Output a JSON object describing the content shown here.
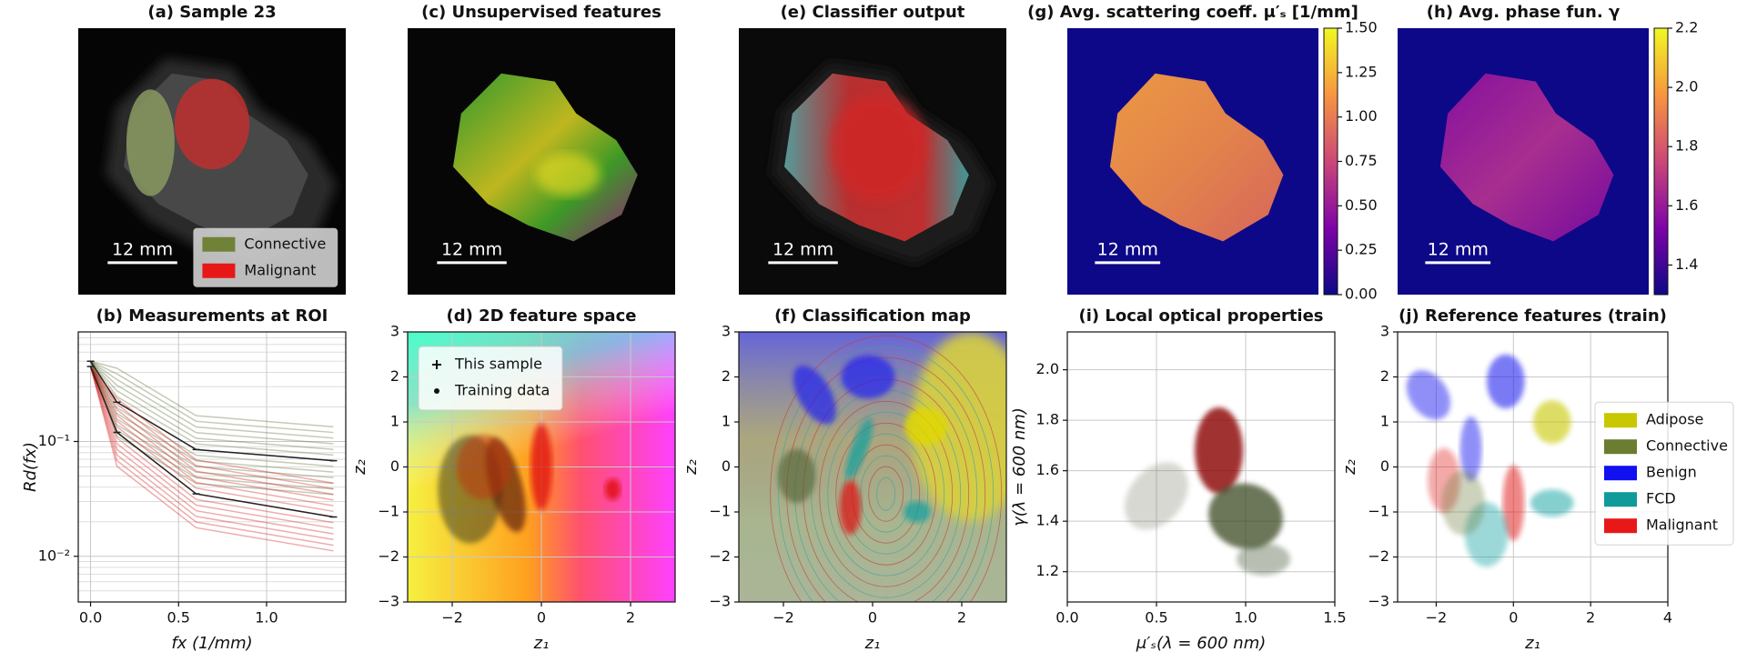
{
  "chart_data": [
    {
      "type": "image",
      "title": "(a) Sample 23",
      "scalebar": "12 mm",
      "legend": {
        "position": "lower right",
        "entries": [
          {
            "name": "Connective",
            "color": "#708238"
          },
          {
            "name": "Malignant",
            "color": "#e81818"
          }
        ]
      }
    },
    {
      "type": "line",
      "title": "(b) Measurements at ROI",
      "xlabel": "fx (1/mm)",
      "ylabel": "Rd(fx)",
      "log_y": true,
      "grid": true,
      "xlim": [
        -0.07,
        1.45
      ],
      "ylim": [
        0.004,
        0.9
      ],
      "xticks": [
        {
          "value": 0,
          "label": "0.0"
        },
        0.5,
        {
          "value": 1,
          "label": "1.0"
        }
      ],
      "yticks": [
        {
          "value": 0.01,
          "label": "10⁻²"
        },
        {
          "value": 0.1,
          "label": "10⁻¹"
        }
      ],
      "x": [
        0,
        0.15,
        0.6,
        1.38
      ],
      "series": [
        {
          "name": "Connective",
          "color": "#556b2f",
          "values": [
            0.5,
            0.22,
            0.085,
            0.068
          ]
        },
        {
          "name": "Malignant",
          "color": "#d01010",
          "values": [
            0.45,
            0.12,
            0.035,
            0.022
          ]
        }
      ]
    },
    {
      "type": "image",
      "title": "(c) Unsupervised features",
      "scalebar": "12 mm"
    },
    {
      "type": "scatter",
      "title": "(d) 2D feature space",
      "xlabel": "z₁",
      "ylabel": "z₂",
      "grid": true,
      "xlim": [
        -3,
        3
      ],
      "ylim": [
        -3,
        3
      ],
      "xticks": [
        {
          "value": -2,
          "label": "−2"
        },
        0,
        2
      ],
      "yticks": [
        {
          "value": -3,
          "label": "−3"
        },
        {
          "value": -2,
          "label": "−2"
        },
        {
          "value": -1,
          "label": "−1"
        },
        0,
        1,
        2,
        3
      ],
      "legend": {
        "position": "upper left",
        "entries": [
          {
            "name": "This sample",
            "marker": "plus"
          },
          {
            "name": "Training data",
            "marker": "dot"
          }
        ]
      }
    },
    {
      "type": "image",
      "title": "(e) Classifier output",
      "scalebar": "12 mm"
    },
    {
      "type": "scatter",
      "title": "(f) Classification map",
      "xlabel": "z₁",
      "ylabel": "z₂",
      "grid": false,
      "xlim": [
        -3,
        3
      ],
      "ylim": [
        -3,
        3
      ],
      "xticks": [
        {
          "value": -2,
          "label": "−2"
        },
        0,
        2
      ],
      "yticks": [
        {
          "value": -3,
          "label": "−3"
        },
        {
          "value": -2,
          "label": "−2"
        },
        {
          "value": -1,
          "label": "−1"
        },
        0,
        1,
        2,
        3
      ]
    },
    {
      "type": "image",
      "title": "(g) Avg. scattering coeff. μ′ₛ [1/mm]",
      "scalebar": "12 mm",
      "colorbar": {
        "lim": [
          0,
          1.5
        ],
        "ticks": [
          {
            "value": 0,
            "label": "0.00"
          },
          0.25,
          {
            "value": 0.5,
            "label": "0.50"
          },
          0.75,
          {
            "value": 1,
            "label": "1.00"
          },
          1.25,
          {
            "value": 1.5,
            "label": "1.50"
          }
        ]
      }
    },
    {
      "type": "image",
      "title": "(h) Avg. phase fun. γ",
      "scalebar": "12 mm",
      "colorbar": {
        "lim": [
          1.3,
          2.2
        ],
        "ticks": [
          1.4,
          1.6,
          1.8,
          {
            "value": 2,
            "label": "2.0"
          },
          2.2
        ]
      }
    },
    {
      "type": "scatter",
      "title": "(i) Local optical properties",
      "xlabel": "μ′ₛ(λ = 600 nm)",
      "ylabel": "γ(λ = 600 nm)",
      "grid": true,
      "xlim": [
        0,
        1.5
      ],
      "ylim": [
        1.08,
        2.15
      ],
      "xticks": [
        {
          "value": 0,
          "label": "0.0"
        },
        0.5,
        {
          "value": 1,
          "label": "1.0"
        },
        1.5
      ],
      "yticks": [
        1.2,
        1.4,
        1.6,
        1.8,
        {
          "value": 2,
          "label": "2.0"
        }
      ]
    },
    {
      "type": "scatter",
      "title": "(j) Reference features (train)",
      "xlabel": "z₁",
      "ylabel": "z₂",
      "grid": true,
      "xlim": [
        -3,
        4
      ],
      "ylim": [
        -3,
        3
      ],
      "xticks": [
        {
          "value": -2,
          "label": "−2"
        },
        0,
        2,
        4
      ],
      "yticks": [
        {
          "value": -3,
          "label": "−3"
        },
        {
          "value": -2,
          "label": "−2"
        },
        {
          "value": -1,
          "label": "−1"
        },
        0,
        1,
        2,
        3
      ],
      "legend": {
        "position": "right",
        "entries": [
          {
            "name": "Adipose",
            "color": "#c8c800"
          },
          {
            "name": "Connective",
            "color": "#6b7d30"
          },
          {
            "name": "Benign",
            "color": "#1010f0"
          },
          {
            "name": "FCD",
            "color": "#109a9a"
          },
          {
            "name": "Malignant",
            "color": "#e81818"
          }
        ]
      }
    }
  ]
}
